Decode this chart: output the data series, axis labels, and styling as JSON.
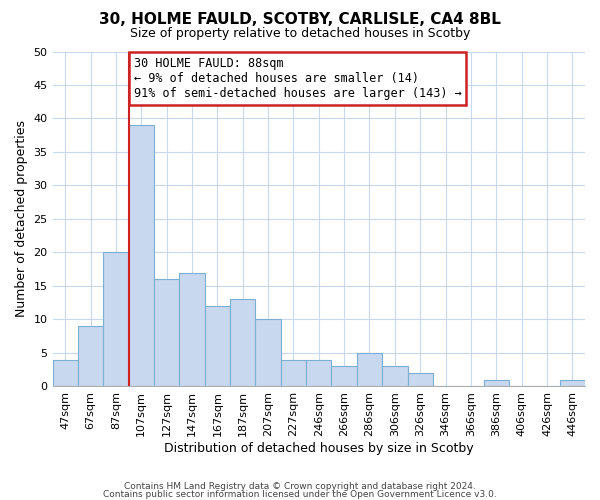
{
  "title": "30, HOLME FAULD, SCOTBY, CARLISLE, CA4 8BL",
  "subtitle": "Size of property relative to detached houses in Scotby",
  "xlabel": "Distribution of detached houses by size in Scotby",
  "ylabel": "Number of detached properties",
  "bar_labels": [
    "47sqm",
    "67sqm",
    "87sqm",
    "107sqm",
    "127sqm",
    "147sqm",
    "167sqm",
    "187sqm",
    "207sqm",
    "227sqm",
    "246sqm",
    "266sqm",
    "286sqm",
    "306sqm",
    "326sqm",
    "346sqm",
    "366sqm",
    "386sqm",
    "406sqm",
    "426sqm",
    "446sqm"
  ],
  "bar_values": [
    4,
    9,
    20,
    39,
    16,
    17,
    12,
    13,
    10,
    4,
    4,
    3,
    5,
    3,
    2,
    0,
    0,
    1,
    0,
    0,
    1
  ],
  "bar_color": "#c8d8ee",
  "bar_edge_color": "#7bafd4",
  "reference_line_x_label": "87sqm",
  "reference_line_color": "#cc2222",
  "ylim": [
    0,
    50
  ],
  "yticks": [
    0,
    5,
    10,
    15,
    20,
    25,
    30,
    35,
    40,
    45,
    50
  ],
  "annotation_title": "30 HOLME FAULD: 88sqm",
  "annotation_line1": "← 9% of detached houses are smaller (14)",
  "annotation_line2": "91% of semi-detached houses are larger (143) →",
  "annotation_box_color": "#ffffff",
  "annotation_box_edge": "#cc2222",
  "footer1": "Contains HM Land Registry data © Crown copyright and database right 2024.",
  "footer2": "Contains public sector information licensed under the Open Government Licence v3.0.",
  "bg_color": "#ffffff",
  "grid_color": "#c8d8ee",
  "title_fontsize": 11,
  "subtitle_fontsize": 9,
  "ylabel_fontsize": 9,
  "xlabel_fontsize": 9,
  "tick_fontsize": 8,
  "annot_fontsize": 8.5,
  "footer_fontsize": 6.5
}
